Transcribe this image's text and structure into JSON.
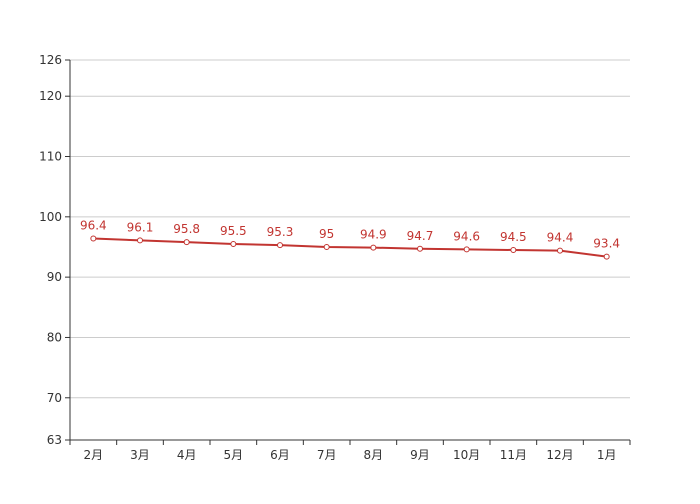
{
  "chart_data": {
    "type": "line",
    "title": "",
    "xlabel": "",
    "ylabel": "",
    "categories": [
      "2月",
      "3月",
      "4月",
      "5月",
      "6月",
      "7月",
      "8月",
      "9月",
      "10月",
      "11月",
      "12月",
      "1月"
    ],
    "series": [
      {
        "values": [
          96.4,
          96.1,
          95.8,
          95.5,
          95.3,
          95,
          94.9,
          94.7,
          94.6,
          94.5,
          94.4,
          93.4
        ],
        "color": "#c23531"
      }
    ],
    "data_labels": [
      "96.4",
      "96.1",
      "95.8",
      "95.5",
      "95.3",
      "95",
      "94.9",
      "94.7",
      "94.6",
      "94.5",
      "94.4",
      "93.4"
    ],
    "ylim": [
      63,
      126
    ],
    "yticks": [
      63,
      70,
      80,
      90,
      100,
      110,
      120,
      126
    ],
    "ytick_labels": [
      "63",
      "70",
      "80",
      "90",
      "100",
      "110",
      "120",
      "126"
    ],
    "grid": true,
    "legend": "none",
    "colors": {
      "line": "#c23531",
      "grid": "#cccccc",
      "axis": "#333333",
      "text": "#333333"
    }
  }
}
